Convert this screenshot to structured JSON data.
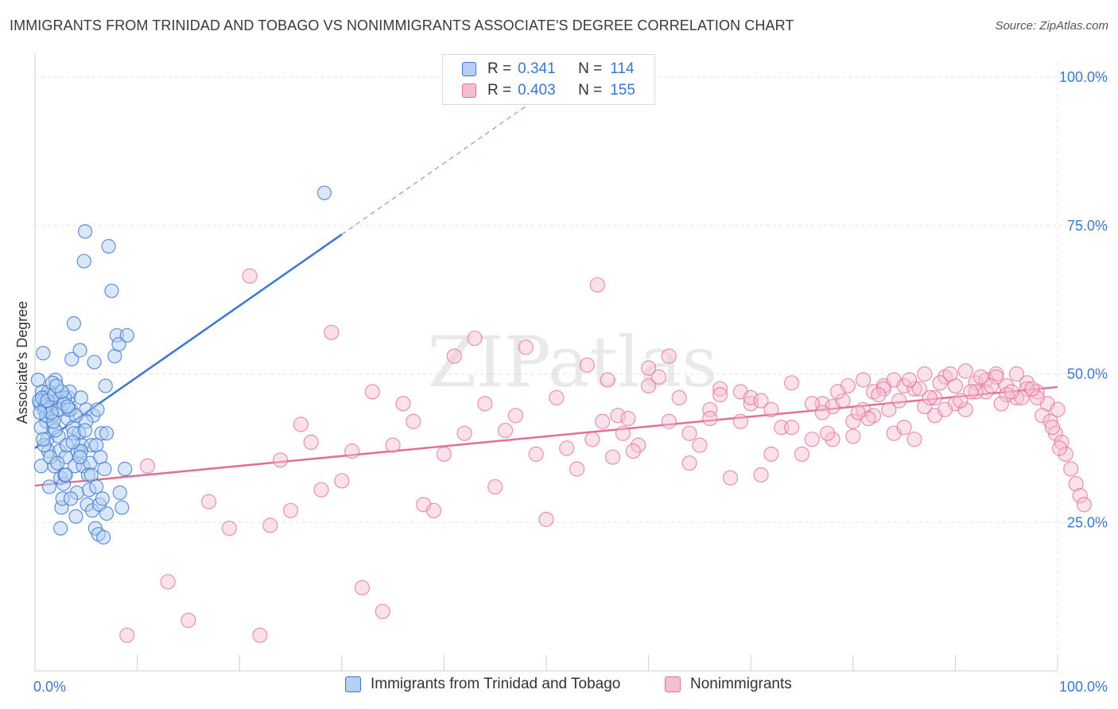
{
  "title": "IMMIGRANTS FROM TRINIDAD AND TOBAGO VS NONIMMIGRANTS ASSOCIATE'S DEGREE CORRELATION CHART",
  "source": "Source: ZipAtlas.com",
  "watermark": "ZIPatlas",
  "colors": {
    "blue": "#3a78d0",
    "blue_fill": "#b6cff2",
    "pink": "#e07098",
    "pink_fill": "#f6bfd0",
    "grid": "#e3e3e3"
  },
  "legend": {
    "rows": [
      {
        "r_label": "R =",
        "r_value": "0.341",
        "n_label": "N =",
        "n_value": "114"
      },
      {
        "r_label": "R =",
        "r_value": "0.403",
        "n_label": "N =",
        "n_value": "155"
      }
    ]
  },
  "bottom_legend": [
    "Immigrants from Trinidad and Tobago",
    "Nonimmigrants"
  ],
  "chart_data": {
    "type": "scatter",
    "ylabel": "Associate's Degree",
    "xlabel": "",
    "xlim": [
      0,
      100
    ],
    "ylim": [
      0,
      100
    ],
    "x_tick_labels": [
      "0.0%",
      "100.0%"
    ],
    "y_tick_labels": [
      "25.0%",
      "50.0%",
      "75.0%",
      "100.0%"
    ],
    "y_ticks": [
      25,
      50,
      75,
      100
    ],
    "grid": true,
    "legend_position": "top-center",
    "series": [
      {
        "name": "Immigrants from Trinidad and Tobago",
        "color": "#3a78d0",
        "trend": {
          "x": [
            0,
            30
          ],
          "y": [
            37.5,
            73.5
          ],
          "dashed_extension_to_x": 50
        },
        "points": [
          [
            0.3,
            49
          ],
          [
            0.5,
            45
          ],
          [
            0.7,
            47
          ],
          [
            0.8,
            53.5
          ],
          [
            0.9,
            44
          ],
          [
            1.0,
            46
          ],
          [
            1.1,
            42
          ],
          [
            1.2,
            39
          ],
          [
            1.3,
            37
          ],
          [
            0.6,
            34.5
          ],
          [
            1.5,
            46.5
          ],
          [
            1.6,
            45
          ],
          [
            1.7,
            43
          ],
          [
            1.8,
            41
          ],
          [
            2.0,
            49
          ],
          [
            2.1,
            45.5
          ],
          [
            2.2,
            44
          ],
          [
            2.3,
            39.5
          ],
          [
            2.4,
            37
          ],
          [
            2.5,
            32.5
          ],
          [
            1.4,
            31
          ],
          [
            1.9,
            34.5
          ],
          [
            2.6,
            27.5
          ],
          [
            2.7,
            29
          ],
          [
            2.8,
            31.5
          ],
          [
            2.9,
            33
          ],
          [
            3.0,
            36
          ],
          [
            3.1,
            38
          ],
          [
            3.2,
            42.5
          ],
          [
            3.3,
            46
          ],
          [
            3.4,
            47
          ],
          [
            3.5,
            44
          ],
          [
            3.6,
            52.5
          ],
          [
            3.7,
            41
          ],
          [
            3.8,
            58.5
          ],
          [
            3.9,
            34.5
          ],
          [
            4.0,
            26
          ],
          [
            4.1,
            30
          ],
          [
            4.2,
            37
          ],
          [
            4.3,
            40
          ],
          [
            4.4,
            54
          ],
          [
            4.5,
            46
          ],
          [
            4.6,
            38
          ],
          [
            4.7,
            34.5
          ],
          [
            4.8,
            69
          ],
          [
            4.9,
            74
          ],
          [
            5.0,
            44
          ],
          [
            5.1,
            28
          ],
          [
            5.2,
            33
          ],
          [
            5.3,
            30.5
          ],
          [
            5.4,
            35
          ],
          [
            5.5,
            38
          ],
          [
            5.6,
            27
          ],
          [
            5.7,
            43
          ],
          [
            5.8,
            52
          ],
          [
            5.9,
            24
          ],
          [
            6.0,
            38
          ],
          [
            6.1,
            44
          ],
          [
            6.2,
            23
          ],
          [
            6.3,
            28
          ],
          [
            6.4,
            36
          ],
          [
            6.5,
            40
          ],
          [
            6.6,
            29
          ],
          [
            6.7,
            22.5
          ],
          [
            6.8,
            34
          ],
          [
            6.9,
            48
          ],
          [
            7.0,
            40
          ],
          [
            7.2,
            71.5
          ],
          [
            7.5,
            64
          ],
          [
            7.8,
            53
          ],
          [
            8.0,
            56.5
          ],
          [
            8.2,
            55
          ],
          [
            8.5,
            27.5
          ],
          [
            8.8,
            34
          ],
          [
            9.0,
            56.5
          ],
          [
            0.4,
            45.5
          ],
          [
            0.9,
            38
          ],
          [
            1.3,
            47
          ],
          [
            1.7,
            48.5
          ],
          [
            2.4,
            44
          ],
          [
            2.0,
            40.5
          ],
          [
            1.1,
            43
          ],
          [
            0.6,
            41
          ],
          [
            0.8,
            39
          ],
          [
            1.5,
            36
          ],
          [
            2.2,
            35
          ],
          [
            3.0,
            33
          ],
          [
            3.5,
            29
          ],
          [
            2.5,
            24
          ],
          [
            1.8,
            42
          ],
          [
            2.9,
            46
          ],
          [
            3.8,
            40
          ],
          [
            4.5,
            37
          ],
          [
            5.0,
            42
          ],
          [
            1.0,
            44.5
          ],
          [
            0.7,
            46
          ],
          [
            1.6,
            43.5
          ],
          [
            2.8,
            45
          ],
          [
            3.3,
            44
          ],
          [
            4.0,
            43
          ],
          [
            0.5,
            43.5
          ],
          [
            1.2,
            45.5
          ],
          [
            1.9,
            46.5
          ],
          [
            2.6,
            47
          ],
          [
            3.2,
            44.5
          ],
          [
            4.4,
            36
          ],
          [
            5.5,
            33
          ],
          [
            6.0,
            31
          ],
          [
            7.0,
            26.5
          ],
          [
            8.3,
            30
          ],
          [
            28.3,
            80.5
          ],
          [
            2.1,
            48
          ],
          [
            3.7,
            38.5
          ],
          [
            4.9,
            40.5
          ]
        ]
      },
      {
        "name": "Nonimmigrants",
        "color": "#e07098",
        "trend": {
          "x": [
            0,
            100
          ],
          "y": [
            31.2,
            47.8
          ]
        },
        "points": [
          [
            9,
            6
          ],
          [
            11,
            34.5
          ],
          [
            13,
            15
          ],
          [
            15,
            8.5
          ],
          [
            17,
            28.5
          ],
          [
            19,
            24
          ],
          [
            21,
            66.5
          ],
          [
            22,
            6
          ],
          [
            23,
            24.5
          ],
          [
            24,
            35.5
          ],
          [
            25,
            27
          ],
          [
            26,
            41.5
          ],
          [
            27,
            38.5
          ],
          [
            28,
            30.5
          ],
          [
            29,
            57
          ],
          [
            30,
            32
          ],
          [
            31,
            37
          ],
          [
            32,
            14
          ],
          [
            33,
            47
          ],
          [
            34,
            10
          ],
          [
            35,
            38
          ],
          [
            36,
            45
          ],
          [
            37,
            42
          ],
          [
            38,
            28
          ],
          [
            39,
            27
          ],
          [
            40,
            36.5
          ],
          [
            41,
            53
          ],
          [
            42,
            40
          ],
          [
            43,
            56
          ],
          [
            44,
            45
          ],
          [
            45,
            31
          ],
          [
            46,
            40.5
          ],
          [
            47,
            43
          ],
          [
            48,
            54.5
          ],
          [
            49,
            36.5
          ],
          [
            50,
            25.5
          ],
          [
            51,
            46
          ],
          [
            52,
            37.5
          ],
          [
            53,
            34
          ],
          [
            54,
            51.5
          ],
          [
            55,
            65
          ],
          [
            56,
            49
          ],
          [
            57,
            43
          ],
          [
            58,
            42.5
          ],
          [
            59,
            38
          ],
          [
            60,
            48
          ],
          [
            61,
            49.5
          ],
          [
            62,
            42
          ],
          [
            63,
            46
          ],
          [
            64,
            35
          ],
          [
            65,
            38
          ],
          [
            66,
            44
          ],
          [
            67,
            47.5
          ],
          [
            68,
            32.5
          ],
          [
            69,
            42
          ],
          [
            70,
            45
          ],
          [
            71,
            33
          ],
          [
            72,
            36.5
          ],
          [
            73,
            41
          ],
          [
            74,
            48.5
          ],
          [
            75,
            36.5
          ],
          [
            76,
            39
          ],
          [
            77,
            45
          ],
          [
            78,
            44.5
          ],
          [
            79,
            45.5
          ],
          [
            80,
            39.5
          ],
          [
            81,
            44
          ],
          [
            82,
            43
          ],
          [
            83,
            48
          ],
          [
            84,
            40
          ],
          [
            85,
            41
          ],
          [
            86,
            39
          ],
          [
            87,
            44.5
          ],
          [
            88,
            43
          ],
          [
            89,
            49.5
          ],
          [
            90,
            45
          ],
          [
            91,
            44
          ],
          [
            92,
            48.5
          ],
          [
            93,
            47
          ],
          [
            94,
            50
          ],
          [
            95,
            48
          ],
          [
            96,
            46
          ],
          [
            97,
            48.5
          ],
          [
            98,
            47
          ],
          [
            99,
            45
          ],
          [
            100,
            44
          ],
          [
            60,
            51
          ],
          [
            62,
            53
          ],
          [
            64,
            40
          ],
          [
            66,
            42.5
          ],
          [
            67,
            46.5
          ],
          [
            69,
            47
          ],
          [
            70,
            46
          ],
          [
            71,
            45.5
          ],
          [
            72,
            44
          ],
          [
            74,
            41
          ],
          [
            76,
            45
          ],
          [
            77,
            43.5
          ],
          [
            78,
            39
          ],
          [
            80,
            42
          ],
          [
            81,
            49
          ],
          [
            82,
            47
          ],
          [
            83,
            47.5
          ],
          [
            84,
            49
          ],
          [
            85,
            48
          ],
          [
            86,
            47.5
          ],
          [
            87,
            50
          ],
          [
            88,
            46
          ],
          [
            89,
            44
          ],
          [
            90,
            48
          ],
          [
            91,
            50.5
          ],
          [
            92,
            47
          ],
          [
            93,
            49
          ],
          [
            94,
            49.5
          ],
          [
            95,
            46.5
          ],
          [
            96,
            50
          ],
          [
            97,
            47.5
          ],
          [
            98,
            46
          ],
          [
            98.5,
            43
          ],
          [
            99.3,
            42
          ],
          [
            99.8,
            40
          ],
          [
            100.4,
            38.5
          ],
          [
            100.8,
            36.5
          ],
          [
            101.3,
            34
          ],
          [
            101.8,
            31.5
          ],
          [
            102.2,
            29.5
          ],
          [
            102.6,
            28
          ],
          [
            100.2,
            37.5
          ],
          [
            99.5,
            41
          ],
          [
            97.5,
            47.5
          ],
          [
            96.5,
            46
          ],
          [
            95.5,
            47
          ],
          [
            94.5,
            45
          ],
          [
            93.5,
            48
          ],
          [
            92.5,
            49.5
          ],
          [
            91.5,
            47
          ],
          [
            90.5,
            45.5
          ],
          [
            89.5,
            50
          ],
          [
            88.5,
            48.5
          ],
          [
            87.5,
            46
          ],
          [
            86.5,
            47.5
          ],
          [
            85.5,
            49
          ],
          [
            84.5,
            45.5
          ],
          [
            83.5,
            44
          ],
          [
            82.5,
            46.5
          ],
          [
            81.5,
            42.5
          ],
          [
            80.5,
            43.5
          ],
          [
            79.5,
            48
          ],
          [
            78.5,
            47
          ],
          [
            77.5,
            40
          ],
          [
            58.5,
            37
          ],
          [
            57.5,
            40
          ],
          [
            56.5,
            36
          ],
          [
            55.5,
            42
          ],
          [
            54.5,
            39
          ]
        ]
      }
    ]
  }
}
